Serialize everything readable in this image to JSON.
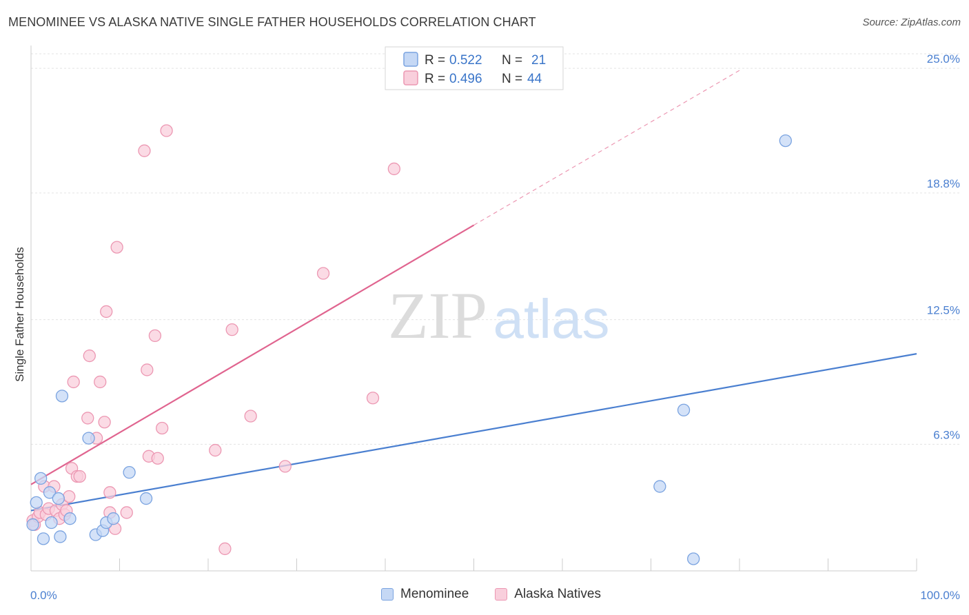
{
  "header": {
    "title": "MENOMINEE VS ALASKA NATIVE SINGLE FATHER HOUSEHOLDS CORRELATION CHART",
    "source": "Source: ZipAtlas.com"
  },
  "watermark": {
    "zip": "ZIP",
    "atlas": "atlas"
  },
  "legend": {
    "rows": [
      {
        "r_label": "R =",
        "r_value": "0.522",
        "n_label": "N =",
        "n_value": "21",
        "color": "#7aa3e0",
        "fill": "#c5d8f5"
      },
      {
        "r_label": "R =",
        "r_value": "0.496",
        "n_label": "N =",
        "n_value": "44",
        "color": "#ec97b2",
        "fill": "#f9cfdc"
      }
    ]
  },
  "bottom_legend": {
    "series1": "Menominee",
    "series2": "Alaska Natives"
  },
  "chart_data": {
    "type": "scatter",
    "ylabel": "Single Father Households",
    "xlabel": "",
    "xlim": [
      0,
      100
    ],
    "ylim": [
      0,
      26.0
    ],
    "x_tick_labels": [
      "0.0%",
      "100.0%"
    ],
    "y_ticks": [
      {
        "value": 6.3,
        "label": "6.3%"
      },
      {
        "value": 12.5,
        "label": "12.5%"
      },
      {
        "value": 18.8,
        "label": "18.8%"
      },
      {
        "value": 25.0,
        "label": "25.0%"
      }
    ],
    "series": [
      {
        "name": "Menominee",
        "color": "#4a7fd0",
        "fill": "#c5d8f5",
        "stroke": "#7aa3e0",
        "points": [
          [
            0.2,
            2.3
          ],
          [
            0.6,
            3.4
          ],
          [
            1.1,
            4.6
          ],
          [
            1.4,
            1.6
          ],
          [
            2.1,
            3.9
          ],
          [
            2.3,
            2.4
          ],
          [
            3.1,
            3.6
          ],
          [
            3.3,
            1.7
          ],
          [
            3.5,
            8.7
          ],
          [
            4.4,
            2.6
          ],
          [
            6.5,
            6.6
          ],
          [
            7.3,
            1.8
          ],
          [
            8.1,
            2.0
          ],
          [
            8.5,
            2.4
          ],
          [
            9.3,
            2.6
          ],
          [
            11.1,
            4.9
          ],
          [
            13.0,
            3.6
          ],
          [
            71.0,
            4.2
          ],
          [
            73.7,
            8.0
          ],
          [
            74.8,
            0.6
          ],
          [
            85.2,
            21.4
          ]
        ],
        "trend": {
          "x0": 0,
          "y0": 3.0,
          "x1": 100,
          "y1": 10.8
        }
      },
      {
        "name": "Alaska Natives",
        "color": "#e0648f",
        "fill": "#f9cfdc",
        "stroke": "#ec97b2",
        "points": [
          [
            0.2,
            2.5
          ],
          [
            0.4,
            2.3
          ],
          [
            0.8,
            2.7
          ],
          [
            1.0,
            2.9
          ],
          [
            1.5,
            4.2
          ],
          [
            1.7,
            2.8
          ],
          [
            2.0,
            3.1
          ],
          [
            2.6,
            4.2
          ],
          [
            2.8,
            3.0
          ],
          [
            3.2,
            2.6
          ],
          [
            3.5,
            3.3
          ],
          [
            3.8,
            2.8
          ],
          [
            4.0,
            3.0
          ],
          [
            4.3,
            3.7
          ],
          [
            4.6,
            5.1
          ],
          [
            4.8,
            9.4
          ],
          [
            5.2,
            4.7
          ],
          [
            5.5,
            4.7
          ],
          [
            6.4,
            7.6
          ],
          [
            6.6,
            10.7
          ],
          [
            7.4,
            6.6
          ],
          [
            7.8,
            9.4
          ],
          [
            8.3,
            7.4
          ],
          [
            8.5,
            12.9
          ],
          [
            8.9,
            2.9
          ],
          [
            8.9,
            3.9
          ],
          [
            9.5,
            2.1
          ],
          [
            9.7,
            16.1
          ],
          [
            10.8,
            2.9
          ],
          [
            12.8,
            20.9
          ],
          [
            13.1,
            10.0
          ],
          [
            13.3,
            5.7
          ],
          [
            14.0,
            11.7
          ],
          [
            14.3,
            5.6
          ],
          [
            14.8,
            7.1
          ],
          [
            15.3,
            21.9
          ],
          [
            20.8,
            6.0
          ],
          [
            21.9,
            1.1
          ],
          [
            22.7,
            12.0
          ],
          [
            24.8,
            7.7
          ],
          [
            28.7,
            5.2
          ],
          [
            33.0,
            14.8
          ],
          [
            38.6,
            8.6
          ],
          [
            41.0,
            20.0
          ]
        ],
        "trend": {
          "x0": 0,
          "y0": 4.3,
          "x1": 50,
          "y1": 17.2
        },
        "trend_extension": {
          "x0": 50,
          "y0": 17.2,
          "x1": 80,
          "y1": 24.9
        }
      }
    ]
  }
}
